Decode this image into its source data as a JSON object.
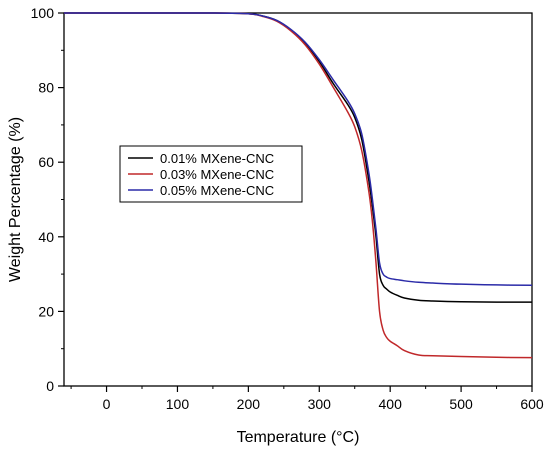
{
  "chart_data": {
    "type": "line",
    "xlabel": "Temperature (°C)",
    "ylabel": "Weight Percentage (%)",
    "xlim": [
      -60,
      600
    ],
    "ylim": [
      0,
      100
    ],
    "xticks": [
      0,
      100,
      200,
      300,
      400,
      500,
      600
    ],
    "yticks": [
      0,
      20,
      40,
      60,
      80,
      100
    ],
    "legend_position": "middle-left",
    "grid": false,
    "series": [
      {
        "name": "0.01% MXene-CNC",
        "color": "#000000",
        "x": [
          -60,
          100,
          150,
          200,
          220,
          240,
          260,
          280,
          300,
          320,
          340,
          350,
          360,
          370,
          375,
          380,
          385,
          390,
          395,
          400,
          410,
          420,
          440,
          460,
          500,
          550,
          600
        ],
        "y": [
          100,
          100,
          100,
          99.8,
          99.2,
          98,
          95.5,
          92,
          87,
          81,
          75.5,
          72,
          66,
          55,
          48,
          40,
          30,
          27,
          26,
          25.2,
          24.3,
          23.6,
          23,
          22.8,
          22.6,
          22.5,
          22.5
        ]
      },
      {
        "name": "0.03% MXene-CNC",
        "color": "#c0282a",
        "x": [
          -60,
          100,
          150,
          200,
          220,
          240,
          260,
          280,
          300,
          320,
          340,
          350,
          360,
          370,
          375,
          380,
          385,
          390,
          395,
          400,
          410,
          420,
          440,
          460,
          500,
          550,
          600
        ],
        "y": [
          100,
          100,
          100,
          99.8,
          99.1,
          97.8,
          95.2,
          91.5,
          86.3,
          80,
          73.5,
          69.5,
          63,
          52,
          44,
          33,
          20,
          15,
          13,
          12,
          10.8,
          9.5,
          8.3,
          8.1,
          7.9,
          7.7,
          7.6
        ]
      },
      {
        "name": "0.05% MXene-CNC",
        "color": "#2b2ba8",
        "x": [
          -60,
          100,
          150,
          200,
          220,
          240,
          260,
          280,
          300,
          320,
          340,
          350,
          360,
          370,
          375,
          380,
          385,
          390,
          395,
          400,
          410,
          420,
          440,
          460,
          500,
          550,
          600
        ],
        "y": [
          100,
          100,
          100,
          99.8,
          99.2,
          98,
          95.6,
          92.2,
          87.5,
          82,
          76.5,
          73,
          67.5,
          57,
          50,
          42,
          33,
          30,
          29.2,
          28.8,
          28.5,
          28.2,
          27.8,
          27.6,
          27.3,
          27.1,
          27
        ]
      }
    ]
  }
}
